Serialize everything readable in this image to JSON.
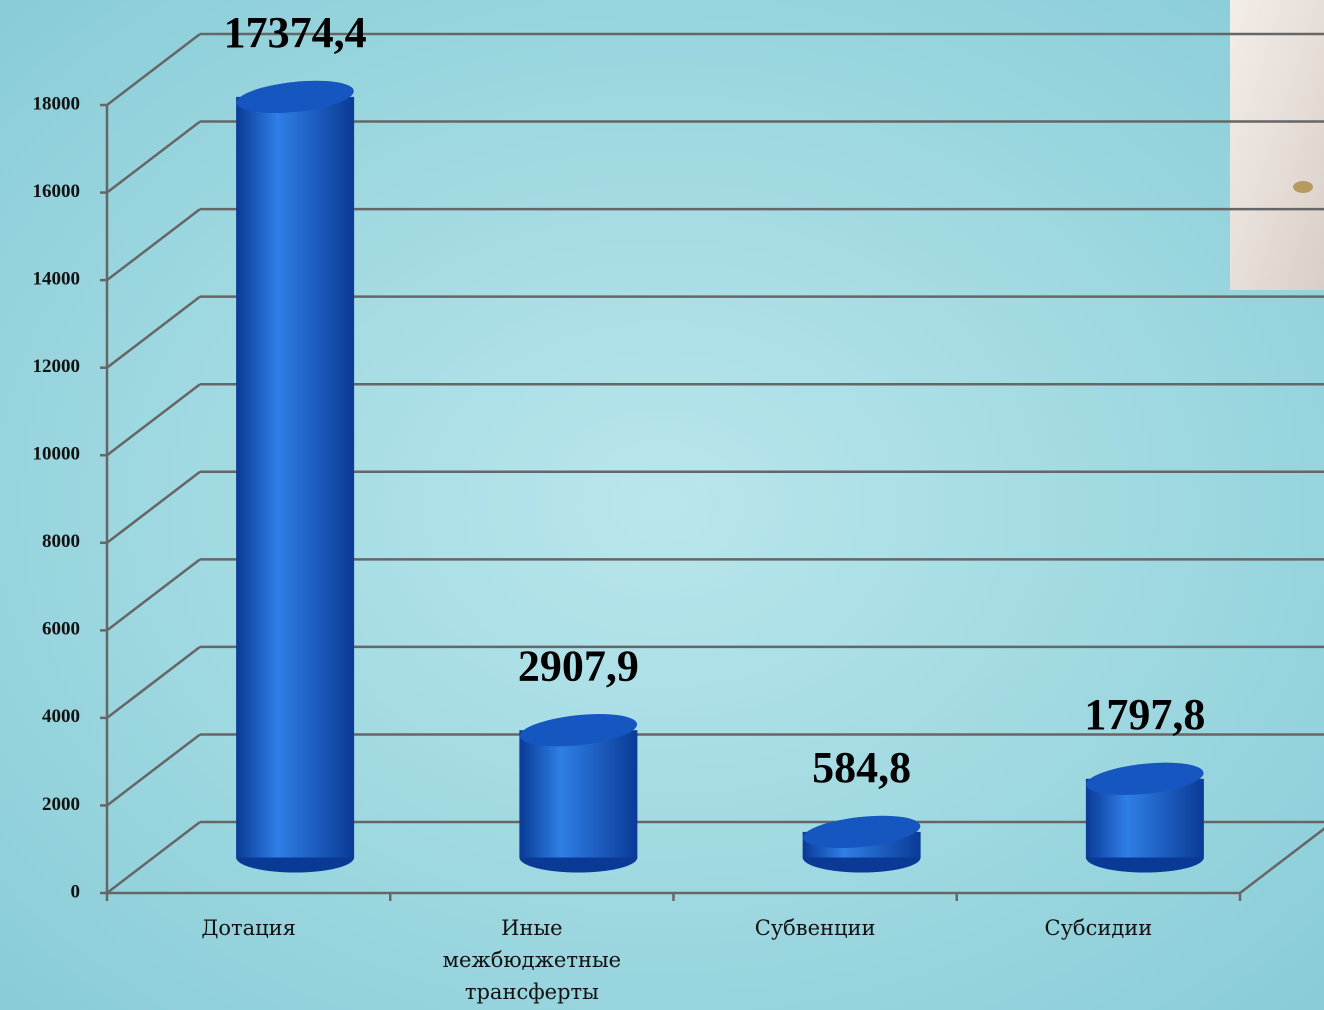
{
  "chart_data": {
    "type": "bar3d",
    "categories": [
      "Дотация",
      "Иные межбюджетные трансферты",
      "Субвенции",
      "Субсидии"
    ],
    "values": [
      17374.4,
      2907.9,
      584.8,
      1797.8
    ],
    "value_labels": [
      "17374,4",
      "2907,9",
      "584,8",
      "1797,8"
    ],
    "color": "#1656c0",
    "ylim": [
      0,
      18000
    ],
    "yticks": [
      0,
      2000,
      4000,
      6000,
      8000,
      10000,
      12000,
      14000,
      16000,
      18000
    ],
    "grid": true
  }
}
